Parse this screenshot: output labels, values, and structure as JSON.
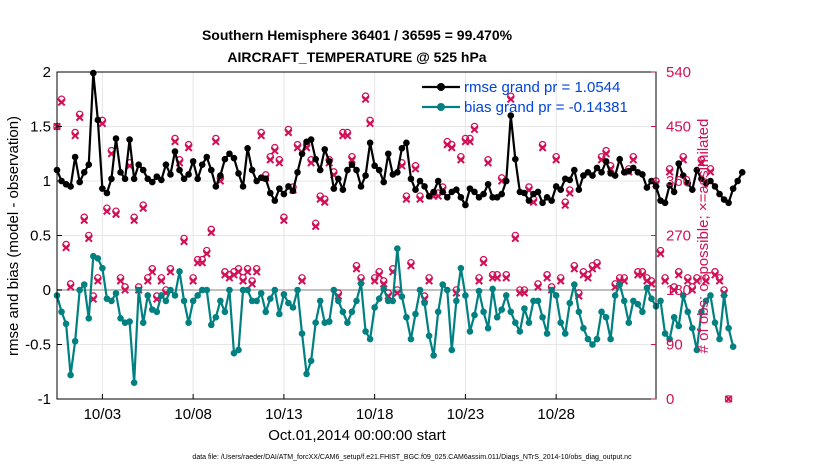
{
  "chart_data": {
    "type": "line",
    "title_line1": "Southern Hemisphere 36401 / 36595 = 99.470%",
    "title_line2": "AIRCRAFT_TEMPERATURE @ 525 hPa",
    "ylabel_left": "rmse and bias (model - observation)",
    "ylabel_right": "# of obs: o=possible; ×=assimilated",
    "xlabel": "Oct.01,2014 00:00:00 start",
    "footer": "data file: /Users/raeder/DAI/ATM_forcXX/CAM6_setup/f.e21.FHIST_BGC.f09_025.CAM6assim.011/Diags_NTrS_2014-10/obs_diag_output.nc",
    "ylim_left": [
      -1,
      2
    ],
    "ylim_right": [
      0,
      540
    ],
    "xlim": [
      0.0,
      33.0
    ],
    "left_ticks": [
      "-1",
      "-0.5",
      "0",
      "0.5",
      "1",
      "1.5",
      "2"
    ],
    "left_tick_values": [
      -1,
      -0.5,
      0,
      0.5,
      1,
      1.5,
      2
    ],
    "right_ticks": [
      "0",
      "90",
      "180",
      "270",
      "360",
      "450",
      "540"
    ],
    "right_tick_values": [
      0,
      90,
      180,
      270,
      360,
      450,
      540
    ],
    "x_ticks": [
      "10/03",
      "10/08",
      "10/13",
      "10/18",
      "10/23",
      "10/28"
    ],
    "x_tick_values": [
      2.5,
      7.5,
      12.5,
      17.5,
      22.5,
      27.5
    ],
    "colors": {
      "rmse": "#000000",
      "bias": "#008080",
      "obs": "#d01057",
      "zero": "#c0c0c0"
    },
    "legend": [
      "rmse grand pr = 1.0544",
      "bias grand pr = -0.14381"
    ],
    "series": [
      {
        "name": "rmse",
        "x_start": 0.0,
        "x_step": 0.25,
        "values": [
          1.1,
          1.0,
          0.97,
          0.95,
          1.22,
          0.99,
          1.08,
          1.15,
          1.99,
          1.56,
          0.93,
          0.89,
          1.02,
          1.39,
          1.08,
          1.02,
          1.38,
          1.02,
          1.15,
          1.1,
          1.02,
          0.99,
          1.04,
          1.01,
          1.15,
          1.06,
          1.27,
          1.1,
          1.02,
          1.06,
          1.18,
          1.02,
          1.15,
          1.22,
          1.1,
          0.95,
          1.05,
          1.2,
          1.25,
          1.21,
          1.07,
          0.95,
          1.3,
          1.1,
          1.0,
          1.03,
          1.02,
          0.89,
          0.82,
          0.93,
          0.88,
          0.95,
          0.91,
          1.08,
          1.25,
          1.36,
          1.38,
          1.2,
          1.1,
          1.29,
          1.18,
          0.93,
          1.02,
          0.92,
          1.1,
          1.15,
          1.1,
          0.95,
          1.05,
          1.35,
          1.14,
          1.1,
          0.99,
          1.25,
          1.06,
          1.08,
          1.3,
          1.35,
          1.02,
          0.92,
          1.0,
          0.95,
          0.86,
          0.9,
          1.0,
          0.9,
          0.85,
          0.9,
          0.92,
          0.85,
          0.78,
          0.93,
          0.9,
          0.85,
          0.88,
          0.97,
          0.85,
          0.85,
          0.88,
          1.0,
          1.6,
          1.2,
          0.9,
          0.89,
          0.82,
          0.88,
          0.9,
          0.8,
          0.85,
          0.82,
          0.95,
          0.92,
          1.02,
          1.01,
          1.1,
          0.92,
          1.05,
          1.08,
          1.05,
          1.12,
          1.08,
          1.18,
          1.07,
          1.05,
          1.2,
          1.08,
          1.09,
          1.12,
          1.08,
          1.06,
          0.94,
          1.0,
          0.95,
          0.82,
          0.8,
          0.96,
          0.9,
          1.16,
          1.05,
          0.98,
          0.92,
          1.1,
          1.02,
          0.98,
          1.0,
          0.95,
          0.88,
          0.83,
          0.8,
          0.93,
          1.0,
          1.08
        ]
      },
      {
        "name": "bias",
        "x_start": 0.0,
        "x_step": 0.25,
        "values": [
          -0.05,
          -0.2,
          -0.31,
          -0.78,
          -0.47,
          0.0,
          0.05,
          -0.26,
          0.31,
          0.29,
          0.2,
          -0.08,
          -0.1,
          -0.03,
          -0.26,
          -0.3,
          -0.29,
          -0.85,
          0.0,
          -0.3,
          -0.05,
          -0.18,
          -0.2,
          -0.05,
          -0.1,
          0.0,
          -0.05,
          0.17,
          -0.1,
          -0.3,
          -0.1,
          -0.05,
          0.0,
          0.0,
          -0.32,
          -0.25,
          -0.1,
          -0.2,
          0.0,
          -0.58,
          -0.55,
          0.0,
          0.0,
          -0.1,
          -0.1,
          -0.03,
          -0.2,
          -0.08,
          0.0,
          -0.22,
          -0.04,
          -0.12,
          -0.16,
          0.0,
          -0.4,
          -0.77,
          -0.65,
          -0.3,
          -0.1,
          -0.3,
          -0.29,
          0.0,
          -0.1,
          -0.2,
          -0.3,
          -0.2,
          -0.1,
          0.06,
          -0.38,
          -0.45,
          -0.16,
          -0.08,
          0.01,
          -0.1,
          -0.1,
          0.38,
          -0.06,
          -0.25,
          -0.45,
          -0.22,
          0.0,
          -0.12,
          -0.42,
          -0.6,
          -0.2,
          0.05,
          0.0,
          -0.55,
          -0.1,
          0.2,
          -0.05,
          -0.38,
          -0.23,
          -0.01,
          -0.2,
          -0.35,
          0.01,
          -0.25,
          -0.18,
          -0.05,
          -0.2,
          -0.3,
          -0.38,
          -0.17,
          -0.3,
          -0.1,
          -0.1,
          -0.25,
          -0.4,
          0.0,
          -0.05,
          -0.3,
          -0.4,
          -0.12,
          0.05,
          -0.2,
          -0.35,
          -0.45,
          -0.5,
          -0.45,
          -0.2,
          -0.25,
          -0.45,
          -0.05,
          0.05,
          -0.1,
          -0.3,
          -0.1,
          -0.13,
          -0.2,
          0.02,
          -0.08,
          -0.15,
          -0.1,
          -0.4,
          -0.45,
          -0.25,
          -0.33,
          -0.05,
          -0.2,
          -0.35,
          -0.55,
          -0.2,
          -0.1,
          -0.05,
          -0.3,
          -0.45,
          -0.05,
          -0.35,
          -0.52
        ]
      },
      {
        "name": "obs_possible",
        "x_start": 0.0,
        "x_step": 0.25,
        "values": [
          450,
          495,
          255,
          190,
          440,
          470,
          300,
          270,
          170,
          200,
          460,
          315,
          410,
          310,
          200,
          185,
          390,
          300,
          185,
          320,
          200,
          215,
          170,
          200,
          180,
          215,
          430,
          395,
          265,
          420,
          200,
          230,
          230,
          245,
          280,
          430,
          365,
          210,
          205,
          210,
          215,
          200,
          215,
          195,
          215,
          440,
          370,
          400,
          415,
          395,
          300,
          445,
          350,
          420,
          200,
          420,
          395,
          290,
          335,
          330,
          395,
          375,
          175,
          440,
          440,
          400,
          220,
          200,
          500,
          460,
          200,
          210,
          195,
          175,
          215,
          180,
          390,
          335,
          225,
          385,
          335,
          170,
          200,
          340,
          340,
          350,
          425,
          420,
          180,
          400,
          430,
          430,
          450,
          200,
          230,
          395,
          205,
          205,
          365,
          205,
          500,
          270,
          180,
          180,
          350,
          330,
          190,
          420,
          205,
          185,
          400,
          200,
          325,
          345,
          220,
          175,
          210,
          205,
          220,
          225,
          400,
          410,
          385,
          190,
          200,
          200,
          380,
          400,
          210,
          210,
          200,
          195,
          360,
          245,
          200,
          380,
          185,
          210,
          400,
          200,
          185,
          200,
          395,
          200,
          380,
          210,
          200,
          180,
          0
        ]
      },
      {
        "name": "obs_assimilated",
        "x_start": 0.0,
        "x_step": 0.25,
        "values": [
          450,
          490,
          250,
          185,
          435,
          465,
          295,
          265,
          165,
          195,
          455,
          310,
          405,
          305,
          195,
          180,
          385,
          295,
          180,
          315,
          195,
          210,
          165,
          195,
          175,
          210,
          425,
          390,
          260,
          415,
          195,
          225,
          225,
          240,
          275,
          425,
          360,
          205,
          200,
          205,
          210,
          195,
          210,
          190,
          210,
          435,
          365,
          395,
          410,
          390,
          295,
          440,
          345,
          415,
          195,
          415,
          390,
          285,
          330,
          325,
          390,
          370,
          170,
          435,
          435,
          395,
          215,
          195,
          495,
          455,
          195,
          205,
          190,
          170,
          210,
          175,
          385,
          330,
          220,
          380,
          330,
          165,
          195,
          335,
          335,
          345,
          420,
          415,
          175,
          395,
          425,
          425,
          445,
          195,
          225,
          390,
          200,
          200,
          360,
          200,
          495,
          265,
          175,
          175,
          345,
          325,
          185,
          415,
          200,
          180,
          395,
          195,
          320,
          340,
          215,
          170,
          205,
          200,
          215,
          220,
          395,
          405,
          380,
          185,
          195,
          195,
          375,
          395,
          205,
          205,
          195,
          190,
          355,
          240,
          195,
          375,
          180,
          205,
          395,
          195,
          180,
          195,
          390,
          195,
          375,
          205,
          195,
          175,
          0
        ]
      }
    ]
  }
}
